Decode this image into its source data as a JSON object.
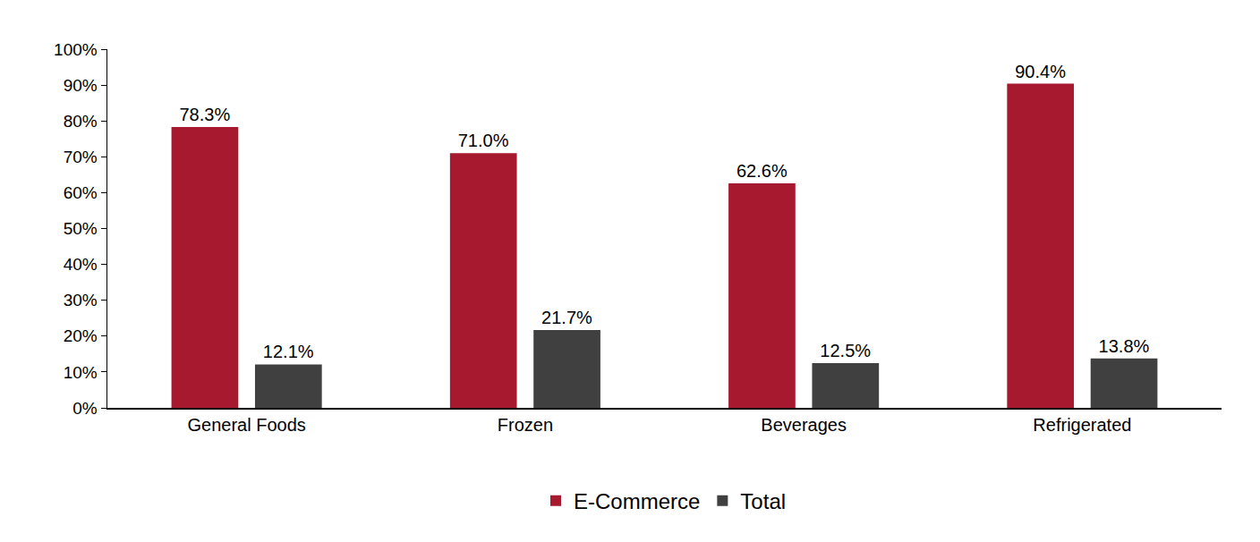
{
  "chart_data": {
    "type": "bar",
    "categories": [
      "General Foods",
      "Frozen",
      "Beverages",
      "Refrigerated"
    ],
    "series": [
      {
        "name": "E-Commerce",
        "color": "#a6192e",
        "values": [
          78.3,
          71.0,
          62.6,
          90.4
        ],
        "value_labels": [
          "78.3%",
          "71.0%",
          "62.6%",
          "90.4%"
        ]
      },
      {
        "name": "Total",
        "color": "#404040",
        "values": [
          12.1,
          21.7,
          12.5,
          13.8
        ],
        "value_labels": [
          "12.1%",
          "21.7%",
          "12.5%",
          "13.8%"
        ]
      }
    ],
    "ylim": [
      0,
      100
    ],
    "yticks": [
      {
        "value": 0,
        "label": "0%"
      },
      {
        "value": 10,
        "label": "10%"
      },
      {
        "value": 20,
        "label": "20%"
      },
      {
        "value": 30,
        "label": "30%"
      },
      {
        "value": 40,
        "label": "40%"
      },
      {
        "value": 50,
        "label": "50%"
      },
      {
        "value": 60,
        "label": "60%"
      },
      {
        "value": 70,
        "label": "70%"
      },
      {
        "value": 80,
        "label": "80%"
      },
      {
        "value": 90,
        "label": "90%"
      },
      {
        "value": 100,
        "label": "100%"
      }
    ],
    "grid": false,
    "legend": "bottom",
    "data_labels": true
  }
}
